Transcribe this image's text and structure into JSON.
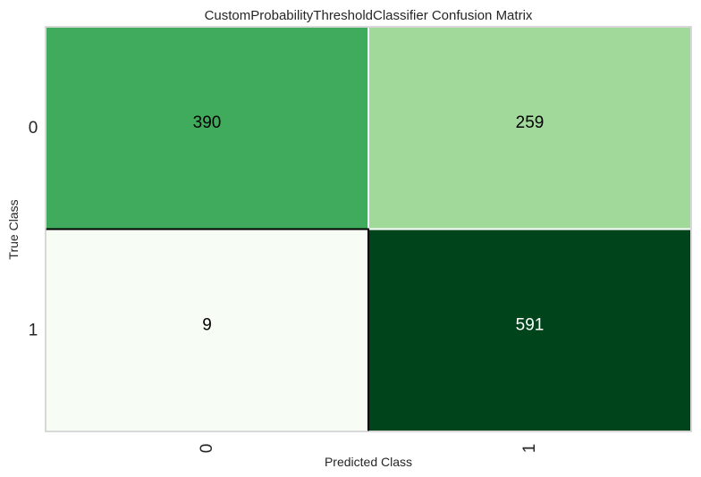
{
  "chart_data": {
    "type": "heatmap",
    "title": "CustomProbabilityThresholdClassifier Confusion Matrix",
    "xlabel": "Predicted Class",
    "ylabel": "True Class",
    "x_categories": [
      "0",
      "1"
    ],
    "y_categories": [
      "0",
      "1"
    ],
    "values": [
      [
        390,
        259
      ],
      [
        9,
        591
      ]
    ],
    "colormap": "Greens",
    "cell_colors": [
      [
        "#41ab5d",
        "#a1d99b"
      ],
      [
        "#f7fcf5",
        "#00441b"
      ]
    ],
    "text_colors": [
      [
        "#000000",
        "#000000"
      ],
      [
        "#000000",
        "#ffffff"
      ]
    ],
    "grid": false
  }
}
